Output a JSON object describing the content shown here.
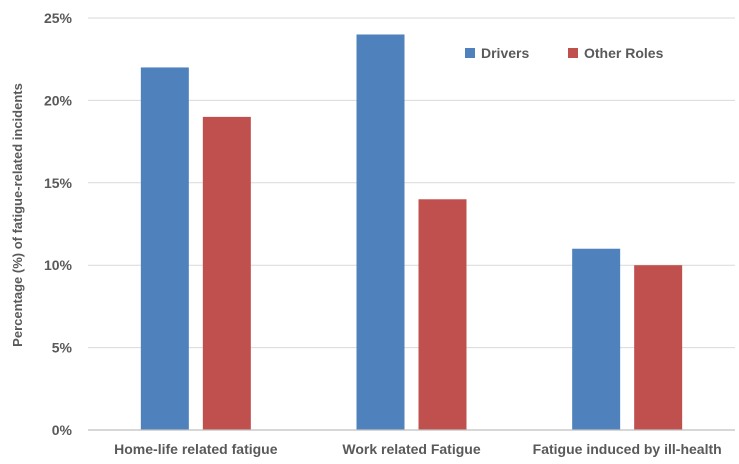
{
  "chart_data": {
    "type": "bar",
    "categories": [
      "Home-life related fatigue",
      "Work related Fatigue",
      "Fatigue induced by ill-health"
    ],
    "series": [
      {
        "name": "Drivers",
        "values": [
          22,
          24,
          11
        ],
        "color": "#4f81bd"
      },
      {
        "name": "Other Roles",
        "values": [
          19,
          14,
          10
        ],
        "color": "#c0504d"
      }
    ],
    "title": "",
    "xlabel": "",
    "ylabel": "Percentage (%) of fatigue-related incidents",
    "ylim": [
      0,
      25
    ],
    "yticks": [
      "0%",
      "5%",
      "10%",
      "15%",
      "20%",
      "25%"
    ],
    "ytick_values": [
      0,
      5,
      10,
      15,
      20,
      25
    ],
    "grid": true,
    "legend_position": "top-right"
  }
}
